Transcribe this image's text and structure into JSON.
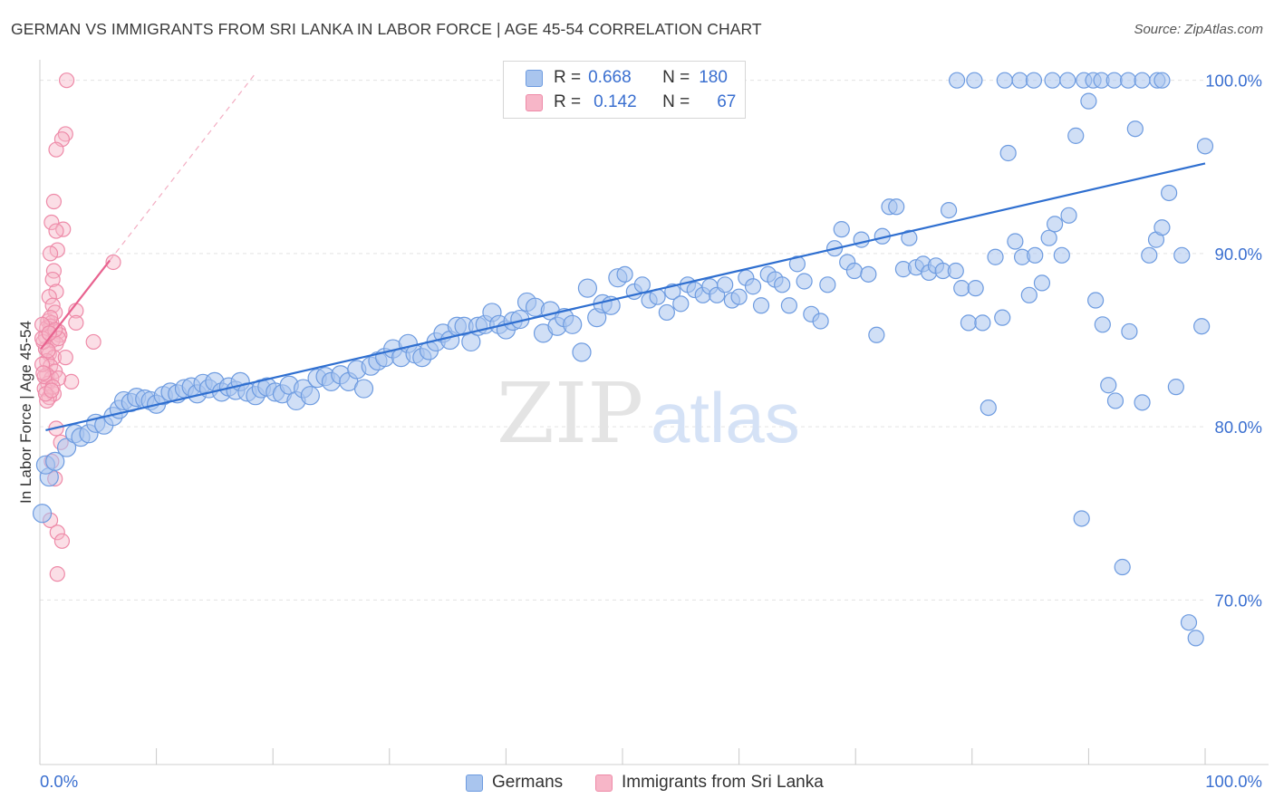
{
  "title": "GERMAN VS IMMIGRANTS FROM SRI LANKA IN LABOR FORCE | AGE 45-54 CORRELATION CHART",
  "source": "Source: ZipAtlas.com",
  "watermark": {
    "zip": "ZIP",
    "atlas": "atlas"
  },
  "legend_top": {
    "rows": [
      {
        "r_label": "R =",
        "r_value": "0.668",
        "n_label": "N =",
        "n_value": "180"
      },
      {
        "r_label": "R =",
        "r_value": "0.142",
        "n_label": "N =",
        "n_value": "67"
      }
    ]
  },
  "legend_bottom": {
    "series1": "Germans",
    "series2": "Immigrants from Sri Lanka"
  },
  "colors": {
    "blue_fill": "#a9c5ee",
    "blue_stroke": "#6d9be0",
    "blue_line": "#2f6fd0",
    "pink_fill": "#f7b6c8",
    "pink_stroke": "#ee8aa8",
    "pink_line": "#e8628f",
    "axis_label": "#3a6fd0",
    "grid": "#e3e3e3"
  },
  "chart_data": {
    "type": "scatter",
    "title": "GERMAN VS IMMIGRANTS FROM SRI LANKA IN LABOR FORCE | AGE 45-54 CORRELATION CHART",
    "xlabel": "",
    "ylabel": "In Labor Force | Age 45-54",
    "xlim": [
      0,
      100
    ],
    "ylim": [
      60.5,
      101.5
    ],
    "x_tick_labels": [
      "0.0%",
      "100.0%"
    ],
    "y_ticks": [
      70,
      80,
      90,
      100
    ],
    "y_tick_labels": [
      "70.0%",
      "80.0%",
      "90.0%",
      "100.0%"
    ],
    "grid": true,
    "legend_position": "top-center",
    "series": [
      {
        "name": "Germans",
        "R": 0.668,
        "N": 180,
        "trend": {
          "x": [
            0.5,
            100
          ],
          "y": [
            79.8,
            95.2
          ]
        },
        "points": [
          [
            0.2,
            75.0
          ],
          [
            0.8,
            77.1
          ],
          [
            0.5,
            77.8
          ],
          [
            1.3,
            78.0
          ],
          [
            2.3,
            78.8
          ],
          [
            3.0,
            79.6
          ],
          [
            3.5,
            79.4
          ],
          [
            4.2,
            79.6
          ],
          [
            4.8,
            80.2
          ],
          [
            5.5,
            80.1
          ],
          [
            6.3,
            80.6
          ],
          [
            6.8,
            81.0
          ],
          [
            7.2,
            81.5
          ],
          [
            7.8,
            81.4
          ],
          [
            8.3,
            81.7
          ],
          [
            9.0,
            81.6
          ],
          [
            9.5,
            81.5
          ],
          [
            10.0,
            81.3
          ],
          [
            10.6,
            81.8
          ],
          [
            11.2,
            82.0
          ],
          [
            11.8,
            81.9
          ],
          [
            12.4,
            82.2
          ],
          [
            13.0,
            82.3
          ],
          [
            13.5,
            81.9
          ],
          [
            14.0,
            82.5
          ],
          [
            14.5,
            82.2
          ],
          [
            15.0,
            82.6
          ],
          [
            15.6,
            82.0
          ],
          [
            16.2,
            82.3
          ],
          [
            16.8,
            82.1
          ],
          [
            17.2,
            82.6
          ],
          [
            17.8,
            82.0
          ],
          [
            18.5,
            81.8
          ],
          [
            19.0,
            82.2
          ],
          [
            19.5,
            82.3
          ],
          [
            20.2,
            82.0
          ],
          [
            20.8,
            81.9
          ],
          [
            21.4,
            82.4
          ],
          [
            22.0,
            81.5
          ],
          [
            22.6,
            82.2
          ],
          [
            23.2,
            81.8
          ],
          [
            23.8,
            82.8
          ],
          [
            24.5,
            82.9
          ],
          [
            25.0,
            82.6
          ],
          [
            25.8,
            83.0
          ],
          [
            26.5,
            82.6
          ],
          [
            27.2,
            83.3
          ],
          [
            27.8,
            82.2
          ],
          [
            28.4,
            83.5
          ],
          [
            29.0,
            83.8
          ],
          [
            29.6,
            84.0
          ],
          [
            30.3,
            84.5
          ],
          [
            31.0,
            84.0
          ],
          [
            31.6,
            84.8
          ],
          [
            32.2,
            84.2
          ],
          [
            32.8,
            84.0
          ],
          [
            33.4,
            84.4
          ],
          [
            34.0,
            84.9
          ],
          [
            34.6,
            85.4
          ],
          [
            35.2,
            85.0
          ],
          [
            35.8,
            85.8
          ],
          [
            36.4,
            85.8
          ],
          [
            37.0,
            84.9
          ],
          [
            37.6,
            85.8
          ],
          [
            38.2,
            85.9
          ],
          [
            38.8,
            86.6
          ],
          [
            39.4,
            85.9
          ],
          [
            40.0,
            85.6
          ],
          [
            40.6,
            86.1
          ],
          [
            41.2,
            86.2
          ],
          [
            41.8,
            87.2
          ],
          [
            42.5,
            86.9
          ],
          [
            43.2,
            85.4
          ],
          [
            43.8,
            86.7
          ],
          [
            44.4,
            85.8
          ],
          [
            45.0,
            86.3
          ],
          [
            45.7,
            85.9
          ],
          [
            46.5,
            84.3
          ],
          [
            47.0,
            88.0
          ],
          [
            47.8,
            86.3
          ],
          [
            48.3,
            87.1
          ],
          [
            49.0,
            87.0
          ],
          [
            49.6,
            88.6
          ],
          [
            50.2,
            88.8
          ],
          [
            51.0,
            87.8
          ],
          [
            51.7,
            88.2
          ],
          [
            52.3,
            87.3
          ],
          [
            53.0,
            87.5
          ],
          [
            53.8,
            86.6
          ],
          [
            54.3,
            87.8
          ],
          [
            55.0,
            87.1
          ],
          [
            55.6,
            88.2
          ],
          [
            56.2,
            87.9
          ],
          [
            56.9,
            87.6
          ],
          [
            57.5,
            88.1
          ],
          [
            58.1,
            87.6
          ],
          [
            58.8,
            88.2
          ],
          [
            59.4,
            87.3
          ],
          [
            60.0,
            87.5
          ],
          [
            60.6,
            88.6
          ],
          [
            61.2,
            88.1
          ],
          [
            61.9,
            87.0
          ],
          [
            62.5,
            88.8
          ],
          [
            63.1,
            88.5
          ],
          [
            63.7,
            88.2
          ],
          [
            64.3,
            87.0
          ],
          [
            65.0,
            89.4
          ],
          [
            65.6,
            88.4
          ],
          [
            66.2,
            86.5
          ],
          [
            67.0,
            86.1
          ],
          [
            67.6,
            88.2
          ],
          [
            68.2,
            90.3
          ],
          [
            68.8,
            91.4
          ],
          [
            69.3,
            89.5
          ],
          [
            69.9,
            89.0
          ],
          [
            70.5,
            90.8
          ],
          [
            71.1,
            88.8
          ],
          [
            71.8,
            85.3
          ],
          [
            72.3,
            91.0
          ],
          [
            72.9,
            92.7
          ],
          [
            73.5,
            92.7
          ],
          [
            74.1,
            89.1
          ],
          [
            74.6,
            90.9
          ],
          [
            75.2,
            89.2
          ],
          [
            75.8,
            89.4
          ],
          [
            76.3,
            88.9
          ],
          [
            76.9,
            89.3
          ],
          [
            77.5,
            89.0
          ],
          [
            78.0,
            92.5
          ],
          [
            78.6,
            89.0
          ],
          [
            79.1,
            88.0
          ],
          [
            79.7,
            86.0
          ],
          [
            80.3,
            88.0
          ],
          [
            80.9,
            86.0
          ],
          [
            81.4,
            81.1
          ],
          [
            82.0,
            89.8
          ],
          [
            82.6,
            86.3
          ],
          [
            83.1,
            95.8
          ],
          [
            83.7,
            90.7
          ],
          [
            84.3,
            89.8
          ],
          [
            84.9,
            87.6
          ],
          [
            85.4,
            89.9
          ],
          [
            86.0,
            88.3
          ],
          [
            86.6,
            90.9
          ],
          [
            87.1,
            91.7
          ],
          [
            87.7,
            89.9
          ],
          [
            88.3,
            92.2
          ],
          [
            88.9,
            96.8
          ],
          [
            89.4,
            74.7
          ],
          [
            90.0,
            98.8
          ],
          [
            90.6,
            87.3
          ],
          [
            91.2,
            85.9
          ],
          [
            91.7,
            82.4
          ],
          [
            92.3,
            81.5
          ],
          [
            92.9,
            71.9
          ],
          [
            93.5,
            85.5
          ],
          [
            94.0,
            97.2
          ],
          [
            94.6,
            81.4
          ],
          [
            95.2,
            89.9
          ],
          [
            95.8,
            90.8
          ],
          [
            96.3,
            91.5
          ],
          [
            96.9,
            93.5
          ],
          [
            97.5,
            82.3
          ],
          [
            98.0,
            89.9
          ],
          [
            98.6,
            68.7
          ],
          [
            99.2,
            67.8
          ],
          [
            99.7,
            85.8
          ],
          [
            100.0,
            96.2
          ],
          [
            78.7,
            100.0
          ],
          [
            80.2,
            100.0
          ],
          [
            82.8,
            100.0
          ],
          [
            84.1,
            100.0
          ],
          [
            85.3,
            100.0
          ],
          [
            86.9,
            100.0
          ],
          [
            88.2,
            100.0
          ],
          [
            89.6,
            100.0
          ],
          [
            90.4,
            100.0
          ],
          [
            91.1,
            100.0
          ],
          [
            92.2,
            100.0
          ],
          [
            93.4,
            100.0
          ],
          [
            94.6,
            100.0
          ],
          [
            95.9,
            100.0
          ],
          [
            96.3,
            100.0
          ]
        ]
      },
      {
        "name": "Immigrants from Sri Lanka",
        "R": 0.142,
        "N": 67,
        "trend": {
          "x": [
            0.1,
            6.0
          ],
          "y": [
            84.5,
            89.6
          ]
        },
        "trend_extension": {
          "x": [
            6.0,
            18.5
          ],
          "y": [
            89.6,
            100.4
          ]
        },
        "points": [
          [
            2.3,
            100.0
          ],
          [
            2.2,
            96.9
          ],
          [
            1.9,
            96.6
          ],
          [
            1.4,
            96.0
          ],
          [
            1.2,
            93.0
          ],
          [
            1.0,
            91.8
          ],
          [
            2.0,
            91.4
          ],
          [
            1.4,
            91.3
          ],
          [
            1.5,
            90.2
          ],
          [
            0.9,
            90.0
          ],
          [
            1.2,
            89.0
          ],
          [
            1.1,
            88.5
          ],
          [
            1.4,
            87.8
          ],
          [
            0.8,
            87.5
          ],
          [
            1.1,
            87.0
          ],
          [
            1.3,
            86.6
          ],
          [
            0.7,
            86.1
          ],
          [
            1.0,
            86.0
          ],
          [
            0.9,
            85.8
          ],
          [
            1.6,
            85.5
          ],
          [
            1.7,
            85.3
          ],
          [
            1.1,
            85.0
          ],
          [
            1.4,
            84.8
          ],
          [
            0.5,
            84.5
          ],
          [
            0.8,
            84.2
          ],
          [
            1.2,
            84.0
          ],
          [
            0.6,
            83.8
          ],
          [
            0.9,
            83.5
          ],
          [
            1.3,
            83.2
          ],
          [
            0.6,
            83.0
          ],
          [
            1.0,
            82.8
          ],
          [
            0.7,
            82.5
          ],
          [
            0.4,
            82.2
          ],
          [
            1.2,
            81.9
          ],
          [
            0.8,
            81.7
          ],
          [
            0.6,
            81.5
          ],
          [
            1.4,
            79.9
          ],
          [
            1.8,
            79.1
          ],
          [
            1.0,
            78.0
          ],
          [
            1.3,
            77.0
          ],
          [
            0.9,
            74.6
          ],
          [
            1.5,
            73.9
          ],
          [
            1.9,
            73.4
          ],
          [
            1.5,
            71.5
          ],
          [
            6.3,
            89.5
          ],
          [
            4.6,
            84.9
          ],
          [
            3.1,
            86.7
          ],
          [
            3.1,
            86.0
          ],
          [
            2.2,
            84.0
          ],
          [
            2.7,
            82.6
          ],
          [
            1.6,
            82.8
          ],
          [
            0.5,
            85.2
          ],
          [
            0.3,
            84.9
          ],
          [
            0.6,
            85.7
          ],
          [
            0.2,
            85.1
          ],
          [
            0.9,
            86.3
          ],
          [
            1.6,
            85.1
          ],
          [
            0.4,
            82.9
          ],
          [
            0.2,
            83.6
          ],
          [
            0.7,
            84.4
          ],
          [
            1.1,
            82.3
          ],
          [
            0.5,
            81.9
          ],
          [
            1.3,
            85.6
          ],
          [
            0.2,
            85.9
          ],
          [
            1.0,
            82.1
          ],
          [
            0.3,
            83.1
          ],
          [
            0.8,
            85.4
          ]
        ]
      }
    ]
  }
}
